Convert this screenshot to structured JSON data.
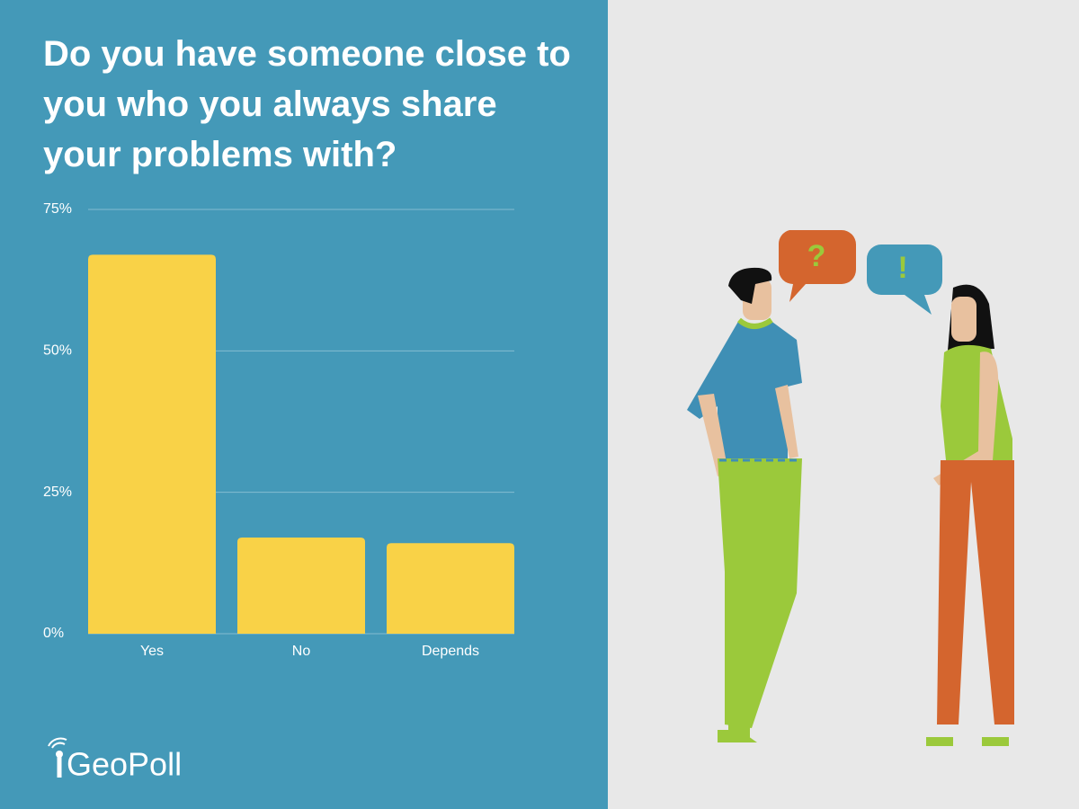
{
  "chart_data": {
    "type": "bar",
    "title": "Do you have someone close to you who you always share your problems with?",
    "categories": [
      "Yes",
      "No",
      "Depends"
    ],
    "values": [
      67,
      17,
      16
    ],
    "color": "#f9d247",
    "ylim": [
      0,
      75
    ],
    "yticks": [
      {
        "value": 0,
        "label": "0%"
      },
      {
        "value": 25,
        "label": "25%"
      },
      {
        "value": 50,
        "label": "50%"
      },
      {
        "value": 75,
        "label": "75%"
      }
    ],
    "grid": true
  },
  "brand": {
    "logo": "GeoPoll"
  },
  "illustration": {
    "bubble_question": "?",
    "bubble_exclaim": "!"
  }
}
